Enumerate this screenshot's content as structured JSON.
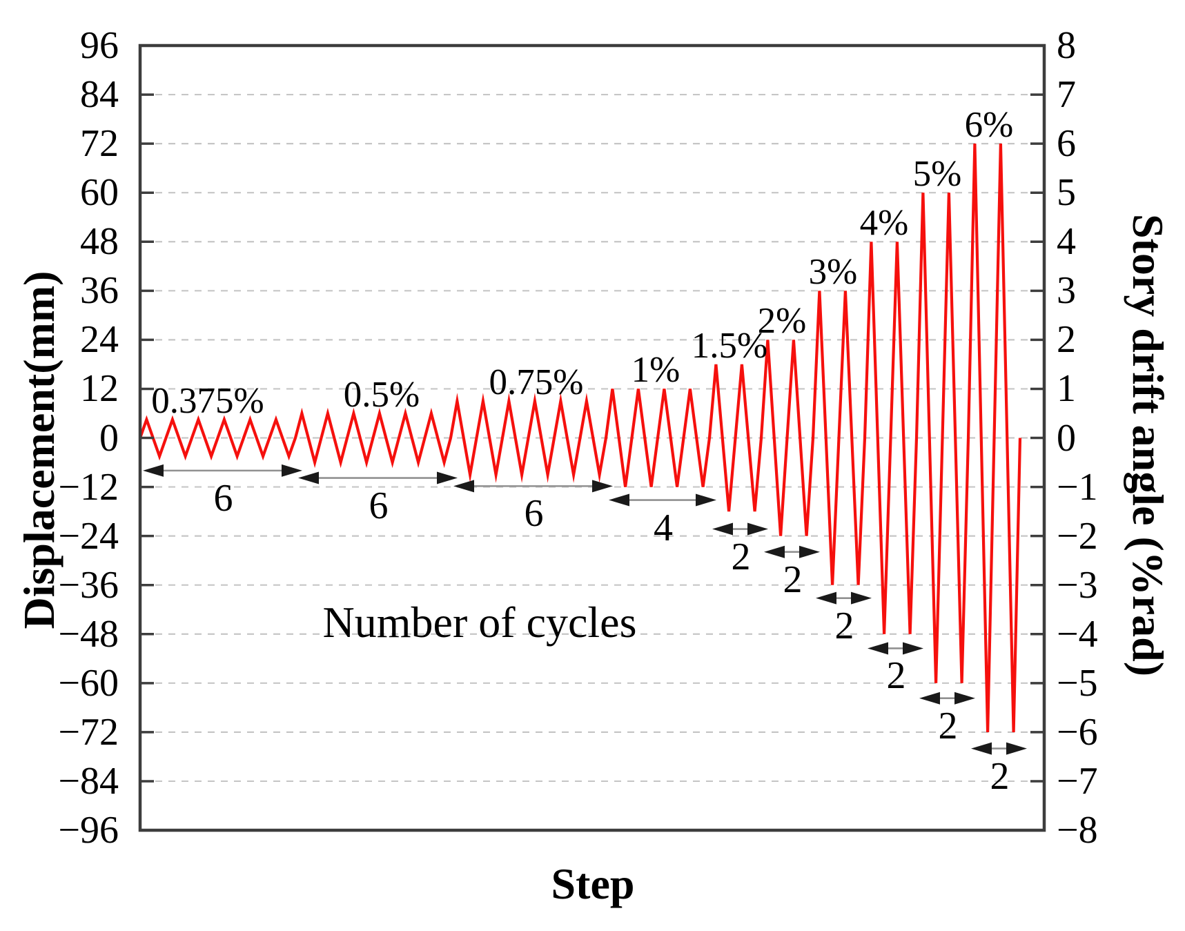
{
  "figure": {
    "background": "#ffffff",
    "annotation": "Number of cycles"
  },
  "chart_data": {
    "type": "line",
    "description": "Cyclic loading protocol: triangular displacement cycles of stepwise increasing amplitude",
    "line_color": "#f5100d",
    "grid_color": "#c6c6c6",
    "axis_color": "#3d3d3d",
    "arrow_head_color": "#1a1a1a",
    "arrow_shaft_color": "#909090",
    "grid": "dashed horizontal",
    "x_axis": {
      "label": "Step",
      "tick_labels": []
    },
    "left_axis": {
      "label": "Displacement(mm)",
      "min": -96,
      "max": 96,
      "tick_step": 12,
      "tick_labels": [
        "96",
        "84",
        "72",
        "60",
        "48",
        "36",
        "24",
        "12",
        "0",
        "−12",
        "−24",
        "−36",
        "−48",
        "−60",
        "−72",
        "−84",
        "−96"
      ]
    },
    "right_axis": {
      "label": "Story drift angle (%rad)",
      "min": -8,
      "max": 8,
      "tick_step": 1,
      "tick_labels": [
        "8",
        "7",
        "6",
        "5",
        "4",
        "3",
        "2",
        "1",
        "0",
        "−1",
        "−2",
        "−3",
        "−4",
        "−5",
        "−6",
        "−7",
        "−8"
      ]
    },
    "annotation": "Number of cycles",
    "groups": [
      {
        "drift_label": "0.375%",
        "amplitude_mm": 4.5,
        "drift_percent": 0.375,
        "cycles": 6
      },
      {
        "drift_label": "0.5%",
        "amplitude_mm": 6,
        "drift_percent": 0.5,
        "cycles": 6
      },
      {
        "drift_label": "0.75%",
        "amplitude_mm": 9,
        "drift_percent": 0.75,
        "cycles": 6
      },
      {
        "drift_label": "1%",
        "amplitude_mm": 12,
        "drift_percent": 1,
        "cycles": 4
      },
      {
        "drift_label": "1.5%",
        "amplitude_mm": 18,
        "drift_percent": 1.5,
        "cycles": 2
      },
      {
        "drift_label": "2%",
        "amplitude_mm": 24,
        "drift_percent": 2,
        "cycles": 2
      },
      {
        "drift_label": "3%",
        "amplitude_mm": 36,
        "drift_percent": 3,
        "cycles": 2
      },
      {
        "drift_label": "4%",
        "amplitude_mm": 48,
        "drift_percent": 4,
        "cycles": 2
      },
      {
        "drift_label": "5%",
        "amplitude_mm": 60,
        "drift_percent": 5,
        "cycles": 2
      },
      {
        "drift_label": "6%",
        "amplitude_mm": 72,
        "drift_percent": 6,
        "cycles": 2
      }
    ]
  }
}
